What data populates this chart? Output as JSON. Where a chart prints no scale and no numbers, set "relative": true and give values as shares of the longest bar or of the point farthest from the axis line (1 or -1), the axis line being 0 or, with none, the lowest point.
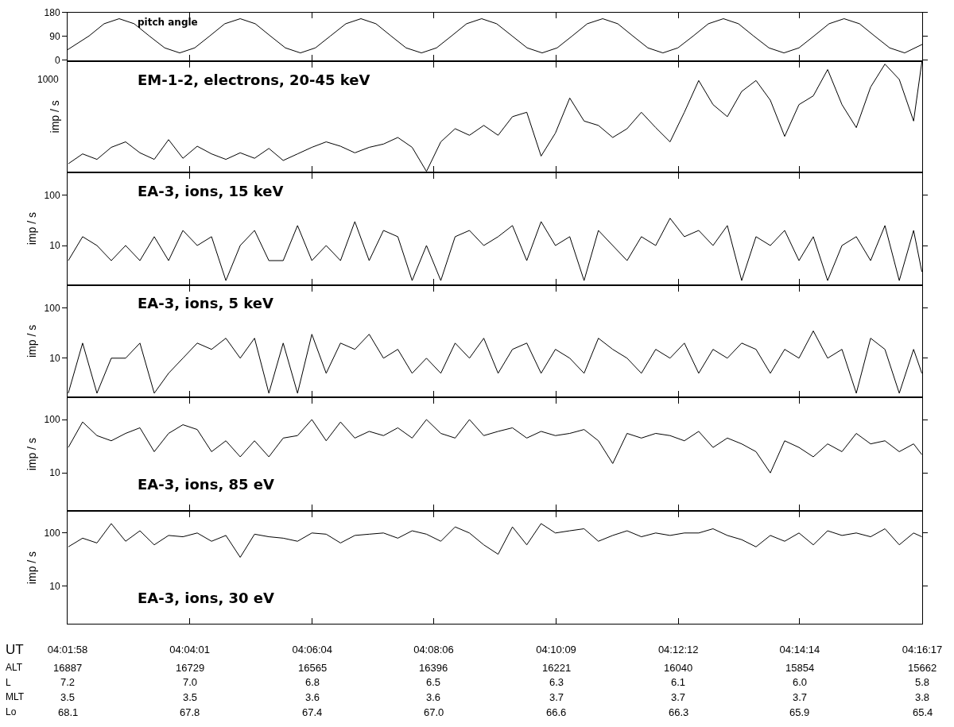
{
  "chart_data": [
    {
      "type": "line",
      "title": "pitch angle",
      "color": "#000000",
      "tick_labels": "y",
      "x": [
        4.0328,
        4.0388,
        4.043,
        4.0472,
        4.0514,
        4.0556,
        4.0599,
        4.0641,
        4.0683,
        4.0725,
        4.0767,
        4.081,
        4.0852,
        4.0894,
        4.0936,
        4.0978,
        4.102,
        4.1062,
        4.1105,
        4.1147,
        4.1189,
        4.1231,
        4.1273,
        4.1316,
        4.1358,
        4.14,
        4.1442,
        4.1484,
        4.1526,
        4.1569,
        4.1611,
        4.1653,
        4.1695,
        4.1737,
        4.1779,
        4.1822,
        4.1864,
        4.1906,
        4.1948,
        4.199,
        4.2032,
        4.2075,
        4.2117,
        4.2159,
        4.2201,
        4.2243,
        4.2286,
        4.2328,
        4.237,
        4.2412,
        4.2454,
        4.2496,
        4.2539,
        4.2581,
        4.2623,
        4.2665,
        4.2714
      ],
      "values": [
        40,
        92,
        138,
        157,
        138,
        92,
        47,
        28,
        47,
        92,
        138,
        157,
        138,
        92,
        47,
        28,
        47,
        92,
        138,
        157,
        138,
        92,
        47,
        28,
        47,
        92,
        138,
        157,
        138,
        92,
        47,
        28,
        47,
        92,
        138,
        157,
        138,
        92,
        47,
        28,
        47,
        92,
        138,
        157,
        138,
        92,
        47,
        28,
        47,
        92,
        138,
        157,
        138,
        92,
        47,
        28,
        60
      ],
      "xlim": [
        4.0328,
        4.2714
      ],
      "xticks": [
        {
          "value": 4.0328,
          "label": null
        },
        {
          "value": 4.0669,
          "label": null
        },
        {
          "value": 4.1011,
          "label": null
        },
        {
          "value": 4.135,
          "label": null
        },
        {
          "value": 4.1692,
          "label": null
        },
        {
          "value": 4.2033,
          "label": null
        },
        {
          "value": 4.2372,
          "label": null
        },
        {
          "value": 4.2714,
          "label": null
        }
      ],
      "ylim": [
        0,
        180
      ],
      "yticks": [
        0,
        90,
        180
      ]
    },
    {
      "type": "line",
      "title": "EM-1-2, electrons, 20-45 keV",
      "ylabel": "imp / s",
      "color": "#000000",
      "relative": true,
      "tick_labels": false,
      "annotations": [
        "1000"
      ],
      "x": [
        4.033,
        4.037,
        4.041,
        4.045,
        4.049,
        4.053,
        4.057,
        4.061,
        4.065,
        4.069,
        4.073,
        4.077,
        4.081,
        4.085,
        4.089,
        4.093,
        4.097,
        4.101,
        4.105,
        4.109,
        4.113,
        4.117,
        4.121,
        4.125,
        4.129,
        4.133,
        4.137,
        4.141,
        4.145,
        4.149,
        4.153,
        4.157,
        4.161,
        4.165,
        4.169,
        4.173,
        4.177,
        4.181,
        4.185,
        4.189,
        4.193,
        4.197,
        4.201,
        4.205,
        4.209,
        4.213,
        4.217,
        4.221,
        4.225,
        4.229,
        4.233,
        4.237,
        4.241,
        4.245,
        4.249,
        4.253,
        4.257,
        4.261,
        4.265,
        4.269,
        4.2713
      ],
      "values": [
        0.07,
        0.16,
        0.11,
        0.22,
        0.27,
        0.17,
        0.11,
        0.29,
        0.12,
        0.23,
        0.16,
        0.11,
        0.17,
        0.12,
        0.21,
        0.1,
        0.16,
        0.22,
        0.27,
        0.23,
        0.17,
        0.22,
        0.25,
        0.31,
        0.22,
        0,
        0.27,
        0.39,
        0.33,
        0.42,
        0.33,
        0.5,
        0.54,
        0.14,
        0.35,
        0.67,
        0.46,
        0.42,
        0.31,
        0.39,
        0.54,
        0.4,
        0.27,
        0.54,
        0.83,
        0.61,
        0.5,
        0.73,
        0.83,
        0.65,
        0.32,
        0.61,
        0.69,
        0.93,
        0.61,
        0.4,
        0.77,
        0.98,
        0.84,
        0.46,
        1
      ],
      "xlim": [
        4.0328,
        4.2714
      ],
      "xticks": [
        {
          "value": 4.0328,
          "label": null
        },
        {
          "value": 4.0669,
          "label": null
        },
        {
          "value": 4.1011,
          "label": null
        },
        {
          "value": 4.135,
          "label": null
        },
        {
          "value": 4.1692,
          "label": null
        },
        {
          "value": 4.2033,
          "label": null
        },
        {
          "value": 4.2372,
          "label": null
        },
        {
          "value": 4.2714,
          "label": null
        }
      ]
    },
    {
      "type": "line",
      "title": "EA-3, ions, 15 keV",
      "ylabel": "imp / s",
      "color": "#000000",
      "log": true,
      "tick_labels": "y",
      "x": [
        4.033,
        4.037,
        4.041,
        4.045,
        4.049,
        4.053,
        4.057,
        4.061,
        4.065,
        4.069,
        4.073,
        4.077,
        4.081,
        4.085,
        4.089,
        4.093,
        4.097,
        4.101,
        4.105,
        4.109,
        4.113,
        4.117,
        4.121,
        4.125,
        4.129,
        4.133,
        4.137,
        4.141,
        4.145,
        4.149,
        4.153,
        4.157,
        4.161,
        4.165,
        4.169,
        4.173,
        4.177,
        4.181,
        4.185,
        4.189,
        4.193,
        4.197,
        4.201,
        4.205,
        4.209,
        4.213,
        4.217,
        4.221,
        4.225,
        4.229,
        4.233,
        4.237,
        4.241,
        4.245,
        4.249,
        4.253,
        4.257,
        4.261,
        4.265,
        4.269,
        4.2713
      ],
      "values": [
        5,
        15,
        10,
        5,
        10,
        5,
        15,
        5,
        20,
        10,
        15,
        2,
        10,
        20,
        5,
        5,
        25,
        5,
        10,
        5,
        30,
        5,
        20,
        15,
        2,
        10,
        2,
        15,
        20,
        10,
        15,
        25,
        5,
        30,
        10,
        15,
        2,
        20,
        10,
        5,
        15,
        10,
        35,
        15,
        20,
        10,
        25,
        2,
        15,
        10,
        20,
        5,
        15,
        2,
        10,
        15,
        5,
        25,
        2,
        20,
        3
      ],
      "xlim": [
        4.0328,
        4.2714
      ],
      "xticks": [
        {
          "value": 4.0328,
          "label": null
        },
        {
          "value": 4.0669,
          "label": null
        },
        {
          "value": 4.1011,
          "label": null
        },
        {
          "value": 4.135,
          "label": null
        },
        {
          "value": 4.1692,
          "label": null
        },
        {
          "value": 4.2033,
          "label": null
        },
        {
          "value": 4.2372,
          "label": null
        },
        {
          "value": 4.2714,
          "label": null
        }
      ],
      "ylim": [
        1.7,
        280
      ],
      "yticks": [
        10,
        100
      ]
    },
    {
      "type": "line",
      "title": "EA-3, ions, 5 keV",
      "ylabel": "imp / s",
      "color": "#000000",
      "log": true,
      "tick_labels": "y",
      "x": [
        4.033,
        4.037,
        4.041,
        4.045,
        4.049,
        4.053,
        4.057,
        4.061,
        4.065,
        4.069,
        4.073,
        4.077,
        4.081,
        4.085,
        4.089,
        4.093,
        4.097,
        4.101,
        4.105,
        4.109,
        4.113,
        4.117,
        4.121,
        4.125,
        4.129,
        4.133,
        4.137,
        4.141,
        4.145,
        4.149,
        4.153,
        4.157,
        4.161,
        4.165,
        4.169,
        4.173,
        4.177,
        4.181,
        4.185,
        4.189,
        4.193,
        4.197,
        4.201,
        4.205,
        4.209,
        4.213,
        4.217,
        4.221,
        4.225,
        4.229,
        4.233,
        4.237,
        4.241,
        4.245,
        4.249,
        4.253,
        4.257,
        4.261,
        4.265,
        4.269,
        4.2713
      ],
      "values": [
        2,
        20,
        2,
        10,
        10,
        20,
        2,
        5,
        10,
        20,
        15,
        25,
        10,
        25,
        2,
        20,
        2,
        30,
        5,
        20,
        15,
        30,
        10,
        15,
        5,
        10,
        5,
        20,
        10,
        25,
        5,
        15,
        20,
        5,
        15,
        10,
        5,
        25,
        15,
        10,
        5,
        15,
        10,
        20,
        5,
        15,
        10,
        20,
        15,
        5,
        15,
        10,
        35,
        10,
        15,
        2,
        25,
        15,
        2,
        15,
        5
      ],
      "xlim": [
        4.0328,
        4.2714
      ],
      "xticks": [
        {
          "value": 4.0328,
          "label": null
        },
        {
          "value": 4.0669,
          "label": null
        },
        {
          "value": 4.1011,
          "label": null
        },
        {
          "value": 4.135,
          "label": null
        },
        {
          "value": 4.1692,
          "label": null
        },
        {
          "value": 4.2033,
          "label": null
        },
        {
          "value": 4.2372,
          "label": null
        },
        {
          "value": 4.2714,
          "label": null
        }
      ],
      "ylim": [
        1.7,
        280
      ],
      "yticks": [
        10,
        100
      ]
    },
    {
      "type": "line",
      "title": "EA-3, ions, 85 eV",
      "ylabel": "imp / s",
      "color": "#000000",
      "log": true,
      "tick_labels": "y",
      "x": [
        4.033,
        4.037,
        4.041,
        4.045,
        4.049,
        4.053,
        4.057,
        4.061,
        4.065,
        4.069,
        4.073,
        4.077,
        4.081,
        4.085,
        4.089,
        4.093,
        4.097,
        4.101,
        4.105,
        4.109,
        4.113,
        4.117,
        4.121,
        4.125,
        4.129,
        4.133,
        4.137,
        4.141,
        4.145,
        4.149,
        4.153,
        4.157,
        4.161,
        4.165,
        4.169,
        4.173,
        4.177,
        4.181,
        4.185,
        4.189,
        4.193,
        4.197,
        4.201,
        4.205,
        4.209,
        4.213,
        4.217,
        4.221,
        4.225,
        4.229,
        4.233,
        4.237,
        4.241,
        4.245,
        4.249,
        4.253,
        4.257,
        4.261,
        4.265,
        4.269,
        4.2713
      ],
      "values": [
        30,
        90,
        50,
        40,
        55,
        70,
        25,
        55,
        80,
        65,
        25,
        40,
        20,
        40,
        20,
        45,
        50,
        100,
        40,
        90,
        45,
        60,
        50,
        70,
        45,
        100,
        55,
        45,
        100,
        50,
        60,
        70,
        45,
        60,
        50,
        55,
        65,
        40,
        15,
        55,
        45,
        55,
        50,
        40,
        60,
        30,
        45,
        35,
        25,
        10,
        40,
        30,
        20,
        35,
        25,
        55,
        35,
        40,
        25,
        35,
        22
      ],
      "xlim": [
        4.0328,
        4.2714
      ],
      "xticks": [
        {
          "value": 4.0328,
          "label": null
        },
        {
          "value": 4.0669,
          "label": null
        },
        {
          "value": 4.1011,
          "label": null
        },
        {
          "value": 4.135,
          "label": null
        },
        {
          "value": 4.1692,
          "label": null
        },
        {
          "value": 4.2033,
          "label": null
        },
        {
          "value": 4.2372,
          "label": null
        },
        {
          "value": 4.2714,
          "label": null
        }
      ],
      "ylim": [
        2,
        250
      ],
      "yticks": [
        10,
        100
      ]
    },
    {
      "type": "line",
      "title": "EA-3, ions, 30 eV",
      "ylabel": "imp / s",
      "color": "#000000",
      "log": true,
      "annotations": [
        "UT",
        "ALT",
        "L",
        "MLT",
        "Lo",
        "16887",
        "16729",
        "16565",
        "16396",
        "16221",
        "16040",
        "15854",
        "15662",
        "7.2",
        "7.0",
        "6.8",
        "6.5",
        "6.3",
        "6.1",
        "6.0",
        "5.8",
        "3.5",
        "3.5",
        "3.6",
        "3.6",
        "3.7",
        "3.7",
        "3.7",
        "3.8",
        "68.1",
        "67.8",
        "67.4",
        "67.0",
        "66.6",
        "66.3",
        "65.9",
        "65.4"
      ],
      "x": [
        4.033,
        4.037,
        4.041,
        4.045,
        4.049,
        4.053,
        4.057,
        4.061,
        4.065,
        4.069,
        4.073,
        4.077,
        4.081,
        4.085,
        4.089,
        4.093,
        4.097,
        4.101,
        4.105,
        4.109,
        4.113,
        4.117,
        4.121,
        4.125,
        4.129,
        4.133,
        4.137,
        4.141,
        4.145,
        4.149,
        4.153,
        4.157,
        4.161,
        4.165,
        4.169,
        4.173,
        4.177,
        4.181,
        4.185,
        4.189,
        4.193,
        4.197,
        4.201,
        4.205,
        4.209,
        4.213,
        4.217,
        4.221,
        4.225,
        4.229,
        4.233,
        4.237,
        4.241,
        4.245,
        4.249,
        4.253,
        4.257,
        4.261,
        4.265,
        4.269,
        4.2713
      ],
      "values": [
        55,
        80,
        65,
        150,
        70,
        110,
        60,
        90,
        85,
        100,
        70,
        90,
        35,
        95,
        85,
        80,
        70,
        100,
        95,
        65,
        90,
        95,
        100,
        80,
        110,
        95,
        70,
        130,
        100,
        60,
        40,
        130,
        60,
        150,
        100,
        110,
        120,
        70,
        90,
        110,
        85,
        100,
        90,
        100,
        100,
        120,
        90,
        75,
        55,
        90,
        70,
        100,
        60,
        110,
        90,
        100,
        85,
        120,
        60,
        100,
        85
      ],
      "xlim": [
        4.0328,
        4.2714
      ],
      "xticks": [
        {
          "value": 4.0328,
          "label": "04:01:58"
        },
        {
          "value": 4.0669,
          "label": "04:04:01"
        },
        {
          "value": 4.1011,
          "label": "04:06:04"
        },
        {
          "value": 4.135,
          "label": "04:08:06"
        },
        {
          "value": 4.1692,
          "label": "04:10:09"
        },
        {
          "value": 4.2033,
          "label": "04:12:12"
        },
        {
          "value": 4.2372,
          "label": "04:14:14"
        },
        {
          "value": 4.2714,
          "label": "04:16:17"
        }
      ],
      "ylim": [
        2,
        250
      ],
      "yticks": [
        10,
        100
      ]
    }
  ]
}
